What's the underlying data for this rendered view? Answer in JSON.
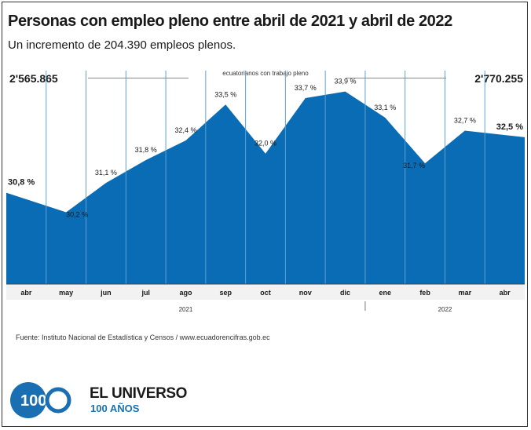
{
  "header": {
    "title": "Personas con empleo pleno entre abril de 2021 y abril de 2022",
    "subtitle": "Un incremento de 204.390 empleos plenos."
  },
  "chart_data": {
    "type": "area",
    "series_caption": "ecuatorianos con trabajo pleno",
    "start_value_label": "2'565.865",
    "end_value_label": "2'770.255",
    "categories": [
      "abr",
      "may",
      "jun",
      "jul",
      "ago",
      "sep",
      "oct",
      "nov",
      "dic",
      "ene",
      "feb",
      "mar",
      "abr"
    ],
    "year_labels": [
      "2021",
      "2022"
    ],
    "series": [
      {
        "values": [
          30.8,
          30.2,
          31.1,
          31.8,
          32.4,
          33.5,
          32.0,
          33.7,
          33.9,
          33.1,
          31.7,
          32.7,
          32.5
        ],
        "labels": [
          "30,8 %",
          "30,2 %",
          "31,1 %",
          "31,8 %",
          "32,4 %",
          "33,5 %",
          "32,0 %",
          "33,7 %",
          "33,9 %",
          "33,1 %",
          "31,7 %",
          "32,7 %",
          "32,5 %"
        ]
      }
    ],
    "ylim": [
      28.0,
      34.3
    ],
    "grid": false,
    "fill_color": "#0a6cb4",
    "divider_color": "#5ea0d4"
  },
  "footer": {
    "source": "Fuente: Instituto Nacional de Estadística y Censos / www.ecuadorencifras.gob.ec",
    "brand": "EL UNIVERSO",
    "brand_sub": "100 AÑOS",
    "logo_text": "100",
    "brand_color": "#1a6fb3"
  }
}
